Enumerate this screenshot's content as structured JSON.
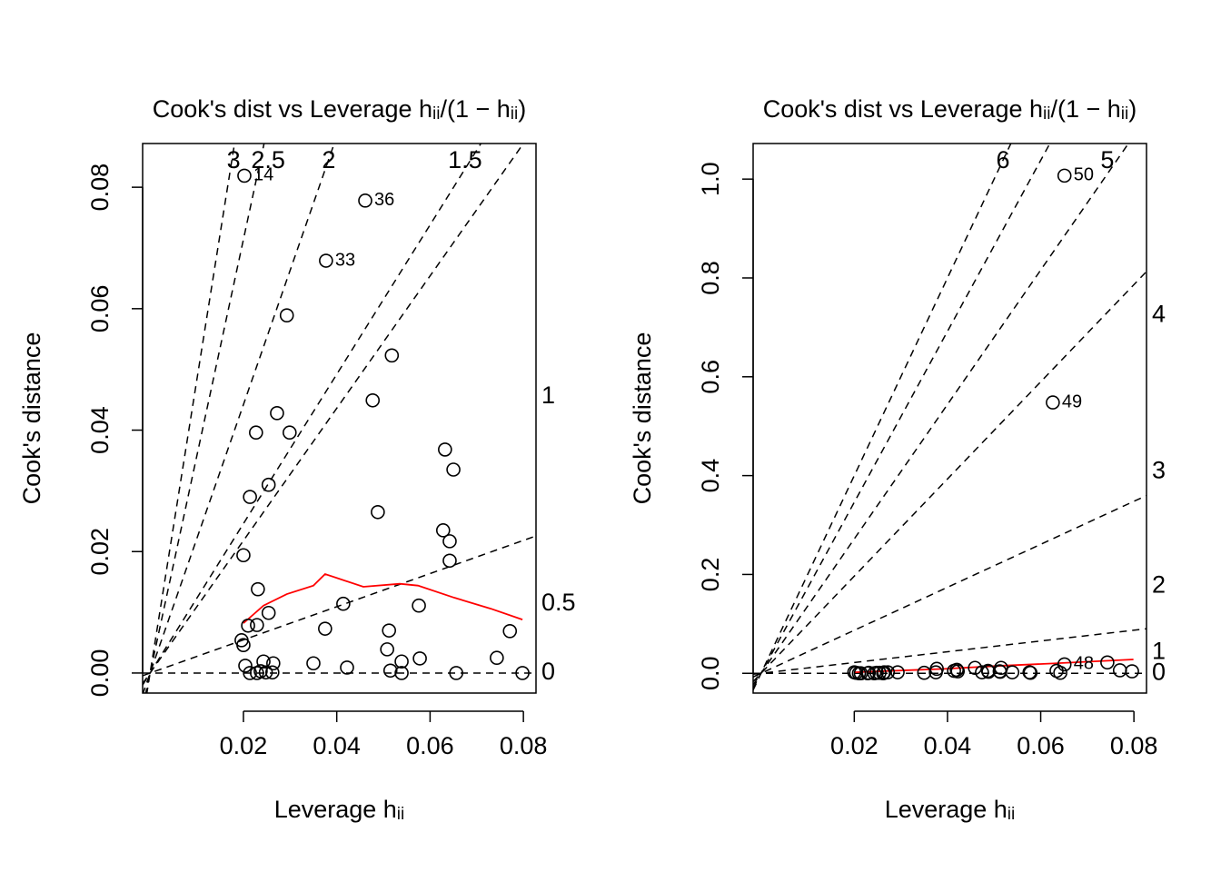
{
  "chart_data": [
    {
      "type": "scatter",
      "title": "Cook's dist vs Leverage  hᵢᵢ/(1 − hᵢᵢ)",
      "xlabel": "Leverage  hᵢᵢ",
      "ylabel": "Cook's distance",
      "color": "#000000",
      "x": [
        0.0202,
        0.0461,
        0.0377,
        0.0293,
        0.0518,
        0.0477,
        0.0272,
        0.0227,
        0.0299,
        0.0632,
        0.065,
        0.0254,
        0.0214,
        0.0488,
        0.0628,
        0.0642,
        0.0642,
        0.02,
        0.0231,
        0.0414,
        0.0576,
        0.0254,
        0.021,
        0.0229,
        0.0375,
        0.0512,
        0.0771,
        0.0196,
        0.02,
        0.0508,
        0.0743,
        0.0578,
        0.035,
        0.0539,
        0.0243,
        0.0264,
        0.0204,
        0.0422,
        0.0515,
        0.0214,
        0.0229,
        0.0237,
        0.0248,
        0.0262,
        0.0539,
        0.0656,
        0.0798
      ],
      "values": [
        0.0819,
        0.0778,
        0.0679,
        0.0589,
        0.0523,
        0.0449,
        0.0428,
        0.0396,
        0.0396,
        0.0368,
        0.0335,
        0.031,
        0.029,
        0.0265,
        0.0235,
        0.0217,
        0.0185,
        0.0194,
        0.0138,
        0.0114,
        0.0111,
        0.0099,
        0.0078,
        0.0079,
        0.0073,
        0.007,
        0.0069,
        0.0054,
        0.0046,
        0.0039,
        0.0025,
        0.0024,
        0.0016,
        0.0019,
        0.0019,
        0.0016,
        0.0012,
        0.0009,
        0.0004,
        0,
        0,
        0.0003,
        0.0001,
        0.0001,
        0,
        0,
        0
      ],
      "labels": [
        "14",
        "36",
        "33",
        null,
        null,
        null,
        null,
        null,
        null,
        null,
        null,
        null,
        null,
        null,
        null,
        null,
        null,
        null,
        null,
        null,
        null,
        null,
        null,
        null,
        null,
        null,
        null,
        null,
        null,
        null,
        null,
        null,
        null,
        null,
        null,
        null,
        null,
        null,
        null,
        null,
        null,
        null,
        null,
        null,
        null,
        null,
        null
      ],
      "smooth": {
        "color": "#ff0000",
        "x": [
          0.02,
          0.0243,
          0.0293,
          0.035,
          0.0375,
          0.0457,
          0.0535,
          0.0574,
          0.0652,
          0.073,
          0.0798
        ],
        "values": [
          0.0082,
          0.0111,
          0.013,
          0.0144,
          0.0163,
          0.0142,
          0.0147,
          0.0144,
          0.0124,
          0.0106,
          0.0088
        ]
      },
      "contours": [
        4.82,
        3.57,
        2.21,
        1.23,
        1.09,
        0.273,
        0
      ],
      "contour_labels": [
        {
          "label": "3",
          "x": 0.0179
        },
        {
          "label": "2.5",
          "x": 0.0253
        },
        {
          "label": "2",
          "x": 0.0383
        },
        {
          "label": "1.5",
          "x": 0.0675
        },
        {
          "label": "1",
          "y": 0.0455
        },
        {
          "label": "0.5",
          "y": 0.0114
        },
        {
          "label": "0",
          "y": 0
        }
      ],
      "xlim": [
        -0.0016,
        0.0827
      ],
      "ylim": [
        -0.0033,
        0.0872
      ],
      "xticks": [
        0.02,
        0.04,
        0.06,
        0.08
      ],
      "yticks": [
        {
          "value": 0,
          "label": "0.00"
        },
        {
          "value": 0.02,
          "label": "0.02"
        },
        {
          "value": 0.04,
          "label": "0.04"
        },
        {
          "value": 0.06,
          "label": "0.06"
        },
        {
          "value": 0.08,
          "label": "0.08"
        }
      ]
    },
    {
      "type": "scatter",
      "title": "Cook's dist vs Leverage  hᵢᵢ/(1 − hᵢᵢ)",
      "xlabel": "Leverage  hᵢᵢ",
      "ylabel": "Cook's distance",
      "color": "#000000",
      "x": [
        0.0651,
        0.0626,
        0.0651,
        0.0743,
        0.077,
        0.0796,
        0.0634,
        0.0515,
        0.0513,
        0.0487,
        0.0474,
        0.0459,
        0.042,
        0.0414,
        0.0377,
        0.0375,
        0.035,
        0.0293,
        0.0264,
        0.0254,
        0.0248,
        0.0229,
        0.0214,
        0.0204,
        0.02,
        0.021,
        0.0231,
        0.0243,
        0.0262,
        0.0272,
        0.0539,
        0.0578,
        0.0576,
        0.0642,
        0.0488,
        0.0512,
        0.0422
      ],
      "values": [
        1.007,
        0.548,
        0.018,
        0.022,
        0.006,
        0.004,
        0.005,
        0.011,
        0.003,
        0.005,
        0.002,
        0.011,
        0.007,
        0.005,
        0.009,
        0.002,
        0.001,
        0.002,
        0.002,
        0.001,
        0.001,
        0,
        0,
        0.001,
        0.002,
        0,
        0.001,
        0,
        0,
        0.002,
        0.002,
        0.001,
        0.002,
        0.001,
        0.003,
        0.004,
        0.004
      ],
      "labels": [
        "50",
        "49",
        "48",
        null,
        null,
        null,
        null,
        null,
        null,
        null,
        null,
        null,
        null,
        null,
        null,
        null,
        null,
        null,
        null,
        null,
        null,
        null,
        null,
        null,
        null,
        null,
        null,
        null,
        null,
        null,
        null,
        null,
        null,
        null,
        null,
        null,
        null
      ],
      "smooth": {
        "color": "#ff0000",
        "x": [
          0.02,
          0.0393,
          0.051,
          0.0627,
          0.0799
        ],
        "values": [
          0.002,
          0.009,
          0.015,
          0.02,
          0.028
        ]
      },
      "contours": [
        20.0,
        17.3,
        13.6,
        9.83,
        4.35,
        1.09,
        0
      ],
      "contour_labels": [
        {
          "label": "6",
          "x": 0.0519
        },
        {
          "label": "5",
          "x": 0.0743
        },
        {
          "label": "4",
          "y": 0.724
        },
        {
          "label": "3",
          "y": 0.408
        },
        {
          "label": "2",
          "y": 0.176
        },
        {
          "label": "1",
          "y": 0.042
        },
        {
          "label": "0",
          "y": 0
        }
      ],
      "xlim": [
        -0.0017,
        0.0827
      ],
      "ylim": [
        -0.04,
        1.072
      ],
      "xticks": [
        0.02,
        0.04,
        0.06,
        0.08
      ],
      "yticks": [
        {
          "value": 0,
          "label": "0.0"
        },
        0.2,
        0.4,
        0.6,
        0.8,
        {
          "value": 1,
          "label": "1.0"
        }
      ]
    }
  ]
}
